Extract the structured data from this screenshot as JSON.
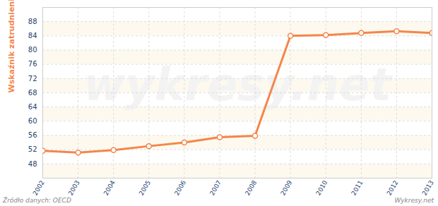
{
  "chart_data": {
    "type": "line",
    "y_label": "Wskaźnik zatrudnienia (w %)",
    "source": "Źródło danych: OECD",
    "credit": "Wykresy.net",
    "watermark": "wykresy.net",
    "x": [
      2002,
      2003,
      2004,
      2005,
      2006,
      2007,
      2008,
      2009,
      2010,
      2011,
      2012,
      2013
    ],
    "values": [
      51.7,
      51.2,
      51.9,
      53.0,
      54.0,
      55.5,
      55.9,
      84.0,
      84.2,
      84.8,
      85.3,
      84.8
    ],
    "color": "#f4864a",
    "marker": "circle",
    "xlim": [
      2002,
      2013
    ],
    "xticks": [
      2002,
      2003,
      2004,
      2005,
      2006,
      2007,
      2008,
      2009,
      2010,
      2011,
      2012,
      2013
    ],
    "ylim": [
      44,
      92
    ],
    "yticks": [
      48,
      52,
      56,
      60,
      64,
      68,
      72,
      76,
      80,
      84,
      88
    ],
    "grid": true
  }
}
